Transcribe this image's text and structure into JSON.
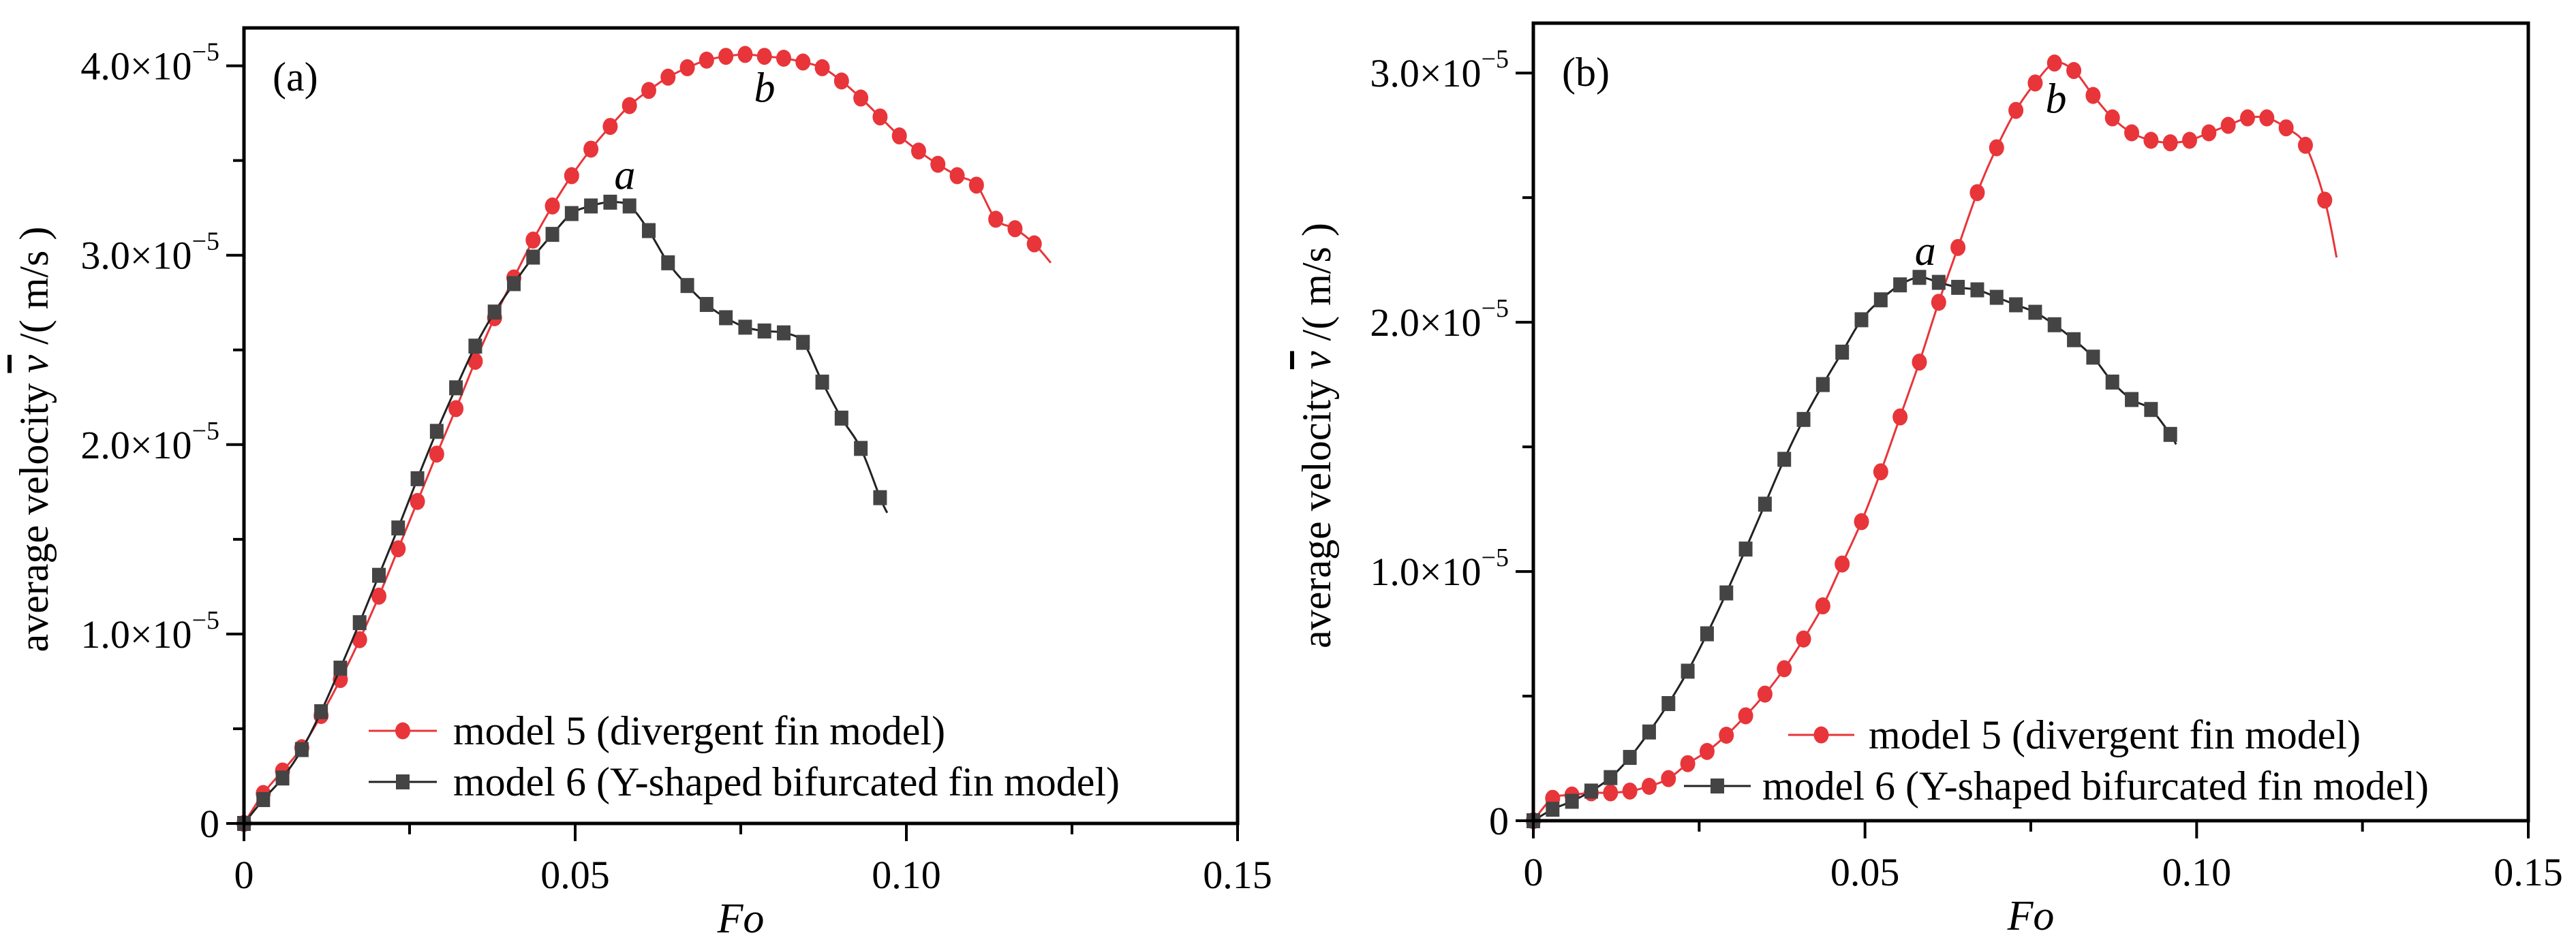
{
  "chart_data": [
    {
      "type": "line",
      "panel_label": "(a)",
      "title": "",
      "xlabel": "Fo",
      "ylabel": "average velocity v̄ /( m/s )",
      "ylabel_parts": {
        "prefix": "average velocity ",
        "symbol": "v",
        "suffix": " /( m/s )"
      },
      "xlim": [
        0,
        0.15
      ],
      "ylim": [
        0,
        4.2e-05
      ],
      "xticks": [
        0,
        0.05,
        0.1,
        0.15
      ],
      "xtick_labels": [
        "0",
        "0.05",
        "0.10",
        "0.15"
      ],
      "x_minor_step": 0.025,
      "yticks": [
        0,
        1e-05,
        2e-05,
        3e-05,
        4e-05
      ],
      "ytick_labels": [
        {
          "mant": "0",
          "exp": ""
        },
        {
          "mant": "1.0×10",
          "exp": "−5"
        },
        {
          "mant": "2.0×10",
          "exp": "−5"
        },
        {
          "mant": "3.0×10",
          "exp": "−5"
        },
        {
          "mant": "4.0×10",
          "exp": "−5"
        }
      ],
      "y_minor_step": 5e-06,
      "grid": false,
      "legend_position": "bottom-right",
      "x_step": 0.00291,
      "series": [
        {
          "name": "model 5 (divergent fin model)",
          "color": "#e8353a",
          "marker": "circle",
          "values_e5": [
            0,
            0.158,
            0.277,
            0.4,
            0.57,
            0.76,
            0.97,
            1.2,
            1.45,
            1.7,
            1.95,
            2.19,
            2.44,
            2.67,
            2.88,
            3.08,
            3.26,
            3.42,
            3.56,
            3.68,
            3.79,
            3.87,
            3.94,
            3.99,
            4.03,
            4.05,
            4.06,
            4.05,
            4.04,
            4.02,
            3.99,
            3.92,
            3.83,
            3.73,
            3.63,
            3.55,
            3.48,
            3.42,
            3.37,
            3.19,
            3.14,
            3.06
          ],
          "line_end": {
            "x": 0.1218,
            "y_e5": 2.96
          }
        },
        {
          "name": "model 6 (Y-shaped bifurcated fin model)",
          "color": "#444444",
          "marker": "square",
          "values_e5": [
            0,
            0.126,
            0.24,
            0.39,
            0.59,
            0.82,
            1.06,
            1.31,
            1.56,
            1.82,
            2.07,
            2.3,
            2.52,
            2.7,
            2.85,
            2.99,
            3.11,
            3.22,
            3.26,
            3.28,
            3.26,
            3.13,
            2.96,
            2.84,
            2.74,
            2.67,
            2.62,
            2.6,
            2.59,
            2.54,
            2.33,
            2.14,
            1.98,
            1.72
          ],
          "line_end": {
            "x": 0.0971,
            "y_e5": 1.64
          }
        }
      ],
      "annotations": [
        {
          "text": "a",
          "x": 0.0575,
          "y_e5": 3.35
        },
        {
          "text": "b",
          "x": 0.0786,
          "y_e5": 3.81
        }
      ]
    },
    {
      "type": "line",
      "panel_label": "(b)",
      "title": "",
      "xlabel": "Fo",
      "ylabel": "average velocity v̄ /( m/s )",
      "ylabel_parts": {
        "prefix": "average velocity ",
        "symbol": "v",
        "suffix": " /( m/s )"
      },
      "xlim": [
        0,
        0.15
      ],
      "ylim": [
        0,
        3.2e-05
      ],
      "xticks": [
        0,
        0.05,
        0.1,
        0.15
      ],
      "xtick_labels": [
        "0",
        "0.05",
        "0.10",
        "0.15"
      ],
      "x_minor_step": 0.025,
      "yticks": [
        0,
        1e-05,
        2e-05,
        3e-05
      ],
      "ytick_labels": [
        {
          "mant": "0",
          "exp": ""
        },
        {
          "mant": "1.0×10",
          "exp": "−5"
        },
        {
          "mant": "2.0×10",
          "exp": "−5"
        },
        {
          "mant": "3.0×10",
          "exp": "−5"
        }
      ],
      "y_minor_step": 5e-06,
      "grid": false,
      "legend_position": "bottom-right",
      "x_step": 0.00291,
      "series": [
        {
          "name": "model 5 (divergent fin model)",
          "color": "#e8353a",
          "marker": "circle",
          "values_e5": [
            0,
            0.09,
            0.103,
            0.112,
            0.112,
            0.119,
            0.138,
            0.169,
            0.229,
            0.278,
            0.343,
            0.421,
            0.508,
            0.61,
            0.729,
            0.862,
            1.03,
            1.2,
            1.4,
            1.62,
            1.84,
            2.08,
            2.3,
            2.52,
            2.7,
            2.85,
            2.96,
            3.04,
            3.01,
            2.91,
            2.82,
            2.76,
            2.73,
            2.72,
            2.73,
            2.76,
            2.79,
            2.82,
            2.82,
            2.78,
            2.71,
            2.49
          ],
          "line_end": {
            "x": 0.1211,
            "y_e5": 2.26
          }
        },
        {
          "name": "model 6 (Y-shaped bifurcated fin model)",
          "color": "#444444",
          "marker": "square",
          "values_e5": [
            0,
            0.046,
            0.078,
            0.119,
            0.173,
            0.254,
            0.356,
            0.47,
            0.6,
            0.75,
            0.914,
            1.09,
            1.27,
            1.45,
            1.61,
            1.75,
            1.88,
            2.01,
            2.09,
            2.15,
            2.18,
            2.16,
            2.14,
            2.13,
            2.1,
            2.07,
            2.04,
            1.99,
            1.93,
            1.86,
            1.76,
            1.69,
            1.65,
            1.55
          ],
          "line_end": {
            "x": 0.0969,
            "y_e5": 1.51
          }
        }
      ],
      "annotations": [
        {
          "text": "a",
          "x": 0.0591,
          "y_e5": 2.23
        },
        {
          "text": "b",
          "x": 0.0788,
          "y_e5": 2.84
        }
      ]
    }
  ]
}
